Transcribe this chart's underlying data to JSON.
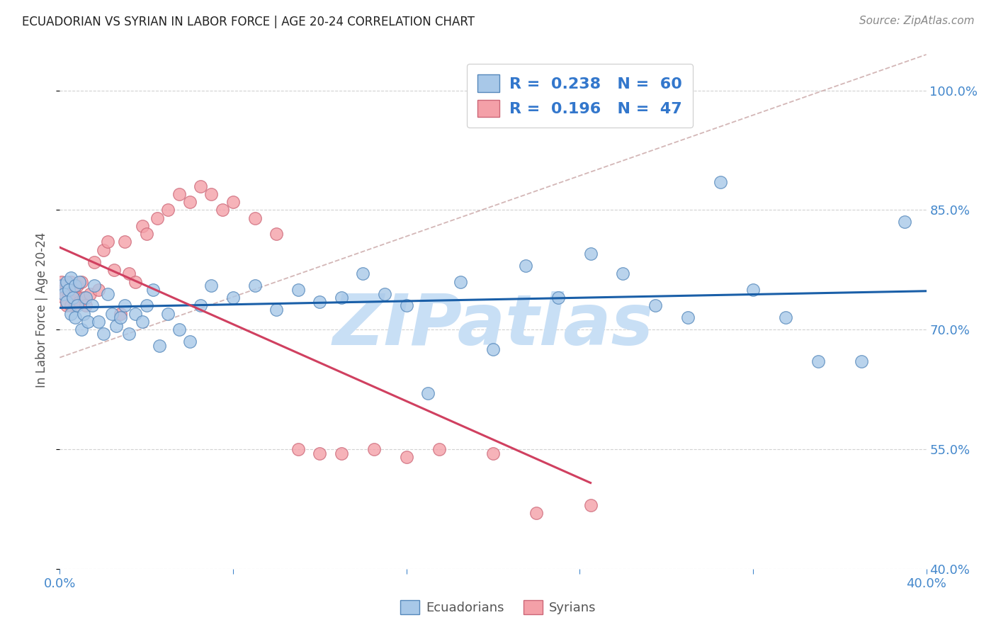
{
  "title": "ECUADORIAN VS SYRIAN IN LABOR FORCE | AGE 20-24 CORRELATION CHART",
  "source": "Source: ZipAtlas.com",
  "ylabel": "In Labor Force | Age 20-24",
  "watermark": "ZIPatlas",
  "legend_blue_R": "0.238",
  "legend_blue_N": "60",
  "legend_pink_R": "0.196",
  "legend_pink_N": "47",
  "xlim": [
    0.0,
    0.4
  ],
  "ylim": [
    0.4,
    1.05
  ],
  "yticks": [
    0.4,
    0.55,
    0.7,
    0.85,
    1.0
  ],
  "ytick_labels": [
    "40.0%",
    "55.0%",
    "70.0%",
    "85.0%",
    "100.0%"
  ],
  "xticks": [
    0.0,
    0.08,
    0.16,
    0.24,
    0.32,
    0.4
  ],
  "xtick_labels": [
    "0.0%",
    "",
    "",
    "",
    "",
    "40.0%"
  ],
  "blue_x": [
    0.001,
    0.002,
    0.003,
    0.003,
    0.004,
    0.005,
    0.005,
    0.006,
    0.007,
    0.007,
    0.008,
    0.009,
    0.01,
    0.011,
    0.012,
    0.013,
    0.015,
    0.016,
    0.018,
    0.02,
    0.022,
    0.024,
    0.026,
    0.028,
    0.03,
    0.032,
    0.035,
    0.038,
    0.04,
    0.043,
    0.046,
    0.05,
    0.055,
    0.06,
    0.065,
    0.07,
    0.08,
    0.09,
    0.1,
    0.11,
    0.12,
    0.13,
    0.14,
    0.15,
    0.16,
    0.17,
    0.185,
    0.2,
    0.215,
    0.23,
    0.245,
    0.26,
    0.275,
    0.29,
    0.305,
    0.32,
    0.335,
    0.35,
    0.37,
    0.39
  ],
  "blue_y": [
    0.755,
    0.745,
    0.76,
    0.735,
    0.75,
    0.765,
    0.72,
    0.74,
    0.755,
    0.715,
    0.73,
    0.76,
    0.7,
    0.72,
    0.74,
    0.71,
    0.73,
    0.755,
    0.71,
    0.695,
    0.745,
    0.72,
    0.705,
    0.715,
    0.73,
    0.695,
    0.72,
    0.71,
    0.73,
    0.75,
    0.68,
    0.72,
    0.7,
    0.685,
    0.73,
    0.755,
    0.74,
    0.755,
    0.725,
    0.75,
    0.735,
    0.74,
    0.77,
    0.745,
    0.73,
    0.62,
    0.76,
    0.675,
    0.78,
    0.74,
    0.795,
    0.77,
    0.73,
    0.715,
    0.885,
    0.75,
    0.715,
    0.66,
    0.66,
    0.835
  ],
  "pink_x": [
    0.001,
    0.002,
    0.002,
    0.003,
    0.003,
    0.004,
    0.005,
    0.005,
    0.006,
    0.007,
    0.007,
    0.008,
    0.009,
    0.01,
    0.011,
    0.012,
    0.014,
    0.016,
    0.018,
    0.02,
    0.022,
    0.025,
    0.028,
    0.03,
    0.032,
    0.035,
    0.038,
    0.04,
    0.045,
    0.05,
    0.055,
    0.06,
    0.065,
    0.07,
    0.075,
    0.08,
    0.09,
    0.1,
    0.11,
    0.12,
    0.13,
    0.145,
    0.16,
    0.175,
    0.2,
    0.22,
    0.245
  ],
  "pink_y": [
    0.76,
    0.75,
    0.74,
    0.755,
    0.73,
    0.745,
    0.76,
    0.73,
    0.75,
    0.745,
    0.73,
    0.755,
    0.735,
    0.76,
    0.74,
    0.73,
    0.745,
    0.785,
    0.75,
    0.8,
    0.81,
    0.775,
    0.72,
    0.81,
    0.77,
    0.76,
    0.83,
    0.82,
    0.84,
    0.85,
    0.87,
    0.86,
    0.88,
    0.87,
    0.85,
    0.86,
    0.84,
    0.82,
    0.55,
    0.545,
    0.545,
    0.55,
    0.54,
    0.55,
    0.545,
    0.47,
    0.48
  ],
  "blue_color": "#a8c8e8",
  "pink_color": "#f4a0a8",
  "blue_edge_color": "#5588bb",
  "pink_edge_color": "#cc6677",
  "blue_line_color": "#1a5fa8",
  "pink_line_color": "#d04060",
  "dashed_line_color": "#ccaaaa",
  "grid_color": "#cccccc",
  "tick_color": "#4488cc",
  "title_color": "#222222",
  "source_color": "#888888",
  "legend_R_color": "#3377cc",
  "watermark_color": "#c8dff5",
  "background_color": "#ffffff"
}
